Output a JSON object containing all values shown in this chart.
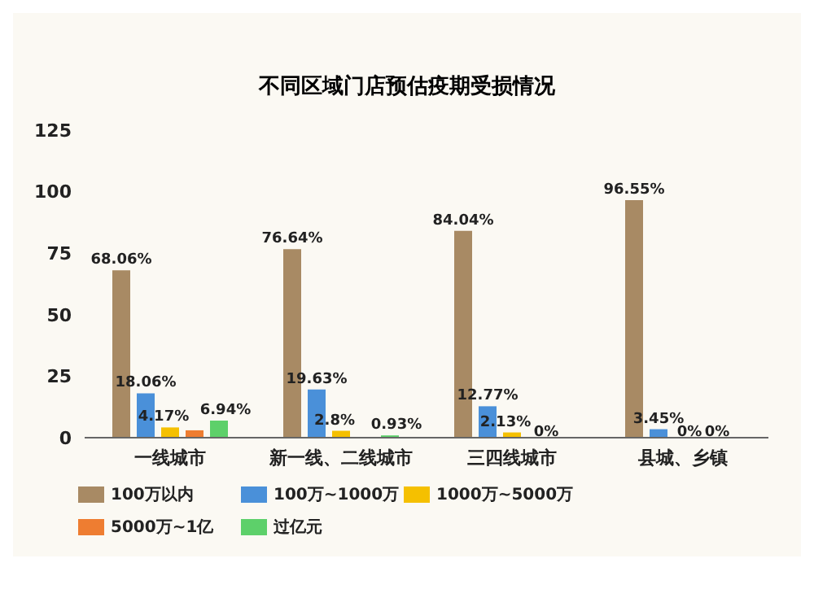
{
  "chart_data": {
    "type": "bar",
    "title": "不同区域门店预估疫期受损情况",
    "categories": [
      "一线城市",
      "新一线、二线城市",
      "三四线城市",
      "县城、乡镇"
    ],
    "series": [
      {
        "name": "100万以内",
        "color": "#a88a64",
        "values": [
          68.06,
          76.64,
          84.04,
          96.55
        ],
        "value_labels": [
          "68.06%",
          "76.64%",
          "84.04%",
          "96.55%"
        ]
      },
      {
        "name": "100万~1000万",
        "color": "#4a90d9",
        "values": [
          18.06,
          19.63,
          12.77,
          3.45
        ],
        "value_labels": [
          "18.06%",
          "19.63%",
          "12.77%",
          "3.45%"
        ]
      },
      {
        "name": "1000万~5000万",
        "color": "#f5c000",
        "values": [
          4.17,
          2.8,
          2.13,
          0
        ],
        "value_labels": [
          "4.17%",
          "2.8%",
          "2.13%",
          "0%"
        ]
      },
      {
        "name": "5000万~1亿",
        "color": "#ee7d31",
        "values": [
          3,
          0,
          0,
          0
        ],
        "value_labels": [
          null,
          null,
          "0%",
          "0%"
        ]
      },
      {
        "name": "过亿元",
        "color": "#5dd06a",
        "values": [
          6.94,
          0.93,
          0,
          0
        ],
        "value_labels": [
          "6.94%",
          "0.93%",
          null,
          null
        ]
      }
    ],
    "ylim": [
      0,
      125
    ],
    "yticks": [
      0,
      25,
      50,
      75,
      100,
      125
    ],
    "grid": false,
    "legend": "bottom"
  }
}
